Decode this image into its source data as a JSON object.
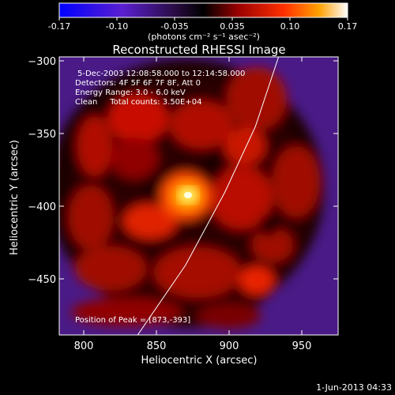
{
  "colorbar": {
    "ticks": [
      "-0.17",
      "-0.10",
      "-0.035",
      "0.035",
      "0.10",
      "0.17"
    ],
    "unit_label": "(photons cm⁻² s⁻¹ asec⁻²)"
  },
  "chart_data": {
    "type": "heatmap",
    "title": "Reconstructed RHESSI Image",
    "xlabel": "Heliocentric X (arcsec)",
    "ylabel": "Heliocentric Y (arcsec)",
    "xlim": [
      783,
      975
    ],
    "ylim": [
      -488,
      -297
    ],
    "x_ticks": [
      800,
      850,
      900,
      950
    ],
    "y_ticks": [
      -300,
      -350,
      -400,
      -450
    ],
    "x_tick_labels": [
      "800",
      "850",
      "900",
      "950"
    ],
    "y_tick_labels": [
      "−300",
      "−350",
      "−400",
      "−450"
    ],
    "value_range": [
      -0.17,
      0.17
    ],
    "colormap": "rhessi-signed: blue-purple-black (negative) to red-orange-yellow-white (positive)",
    "peak": {
      "x": 873,
      "y": -393,
      "value": 0.17
    },
    "info_lines": [
      "5-Dec-2003 12:08:58.000 to 12:14:58.000",
      "Detectors: 4F 5F 6F 7F 8F, Att 0",
      "Energy Range: 3.0 - 6.0 keV",
      "Clean     Total counts: 3.50E+04"
    ],
    "peak_label": "Position of Peak = [873,-393]",
    "limb_curve": [
      [
        837,
        -488
      ],
      [
        870,
        -440
      ],
      [
        897,
        -390
      ],
      [
        918,
        -345
      ],
      [
        934,
        -297
      ]
    ]
  },
  "footer": {
    "date": "1-Jun-2013 04:33"
  }
}
